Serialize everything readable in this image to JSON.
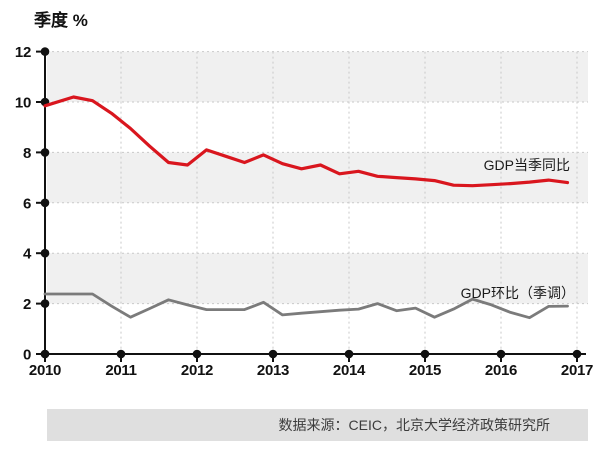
{
  "chart_data": {
    "type": "line",
    "title": "季度 %",
    "ylabel": "季度 %",
    "xlabel": "",
    "grid": "dashed",
    "legend_position": "inline-right",
    "x_axis": {
      "min": 2010,
      "max": 2017,
      "ticks": [
        2010,
        2011,
        2012,
        2013,
        2014,
        2015,
        2016,
        2017
      ]
    },
    "y_axis": {
      "min": 0,
      "max": 12,
      "unit": "%",
      "ticks": [
        0,
        2,
        4,
        6,
        8,
        10,
        12
      ]
    },
    "shaded_bands": [
      [
        10,
        12
      ],
      [
        6,
        8
      ],
      [
        2,
        4
      ]
    ],
    "series": [
      {
        "id": "gdp-yoy",
        "name": "GDP当季同比",
        "color": "#d9161e",
        "width": 3.2,
        "points": [
          [
            2010.0,
            9.85
          ],
          [
            2010.375,
            10.2
          ],
          [
            2010.625,
            10.05
          ],
          [
            2010.875,
            9.55
          ],
          [
            2011.125,
            8.95
          ],
          [
            2011.375,
            8.25
          ],
          [
            2011.625,
            7.6
          ],
          [
            2011.875,
            7.5
          ],
          [
            2012.125,
            8.1
          ],
          [
            2012.375,
            7.85
          ],
          [
            2012.625,
            7.6
          ],
          [
            2012.875,
            7.9
          ],
          [
            2013.125,
            7.55
          ],
          [
            2013.375,
            7.35
          ],
          [
            2013.625,
            7.5
          ],
          [
            2013.875,
            7.15
          ],
          [
            2014.125,
            7.25
          ],
          [
            2014.375,
            7.05
          ],
          [
            2014.625,
            7.0
          ],
          [
            2014.875,
            6.95
          ],
          [
            2015.125,
            6.88
          ],
          [
            2015.375,
            6.7
          ],
          [
            2015.625,
            6.68
          ],
          [
            2015.875,
            6.72
          ],
          [
            2016.125,
            6.76
          ],
          [
            2016.375,
            6.82
          ],
          [
            2016.625,
            6.9
          ],
          [
            2016.875,
            6.8
          ]
        ]
      },
      {
        "id": "gdp-qoq-sa",
        "name": "GDP环比（季调）",
        "color": "#7b7b7b",
        "width": 2.8,
        "points": [
          [
            2010.0,
            2.38
          ],
          [
            2010.125,
            2.38
          ],
          [
            2010.375,
            2.38
          ],
          [
            2010.625,
            2.38
          ],
          [
            2010.875,
            1.9
          ],
          [
            2011.125,
            1.46
          ],
          [
            2011.375,
            1.8
          ],
          [
            2011.625,
            2.15
          ],
          [
            2011.875,
            1.95
          ],
          [
            2012.125,
            1.76
          ],
          [
            2012.375,
            1.76
          ],
          [
            2012.625,
            1.76
          ],
          [
            2012.875,
            2.05
          ],
          [
            2013.125,
            1.55
          ],
          [
            2013.375,
            1.62
          ],
          [
            2013.625,
            1.68
          ],
          [
            2013.875,
            1.74
          ],
          [
            2014.125,
            1.78
          ],
          [
            2014.375,
            2.0
          ],
          [
            2014.625,
            1.72
          ],
          [
            2014.875,
            1.82
          ],
          [
            2015.125,
            1.46
          ],
          [
            2015.375,
            1.78
          ],
          [
            2015.625,
            2.18
          ],
          [
            2015.875,
            1.95
          ],
          [
            2016.125,
            1.65
          ],
          [
            2016.375,
            1.44
          ],
          [
            2016.625,
            1.89
          ],
          [
            2016.875,
            1.9
          ]
        ]
      }
    ]
  },
  "source_note": {
    "text": "数据来源：CEIC，北京大学经济政策研究所"
  },
  "colors": {
    "band": "#f0f0f0",
    "grid": "#c9c9c9",
    "axis": "#111111",
    "red_series": "#d9161e",
    "gray_series": "#7b7b7b",
    "source_bar_bg": "#dfdfdf",
    "source_bar_text": "#3c3c3c"
  }
}
